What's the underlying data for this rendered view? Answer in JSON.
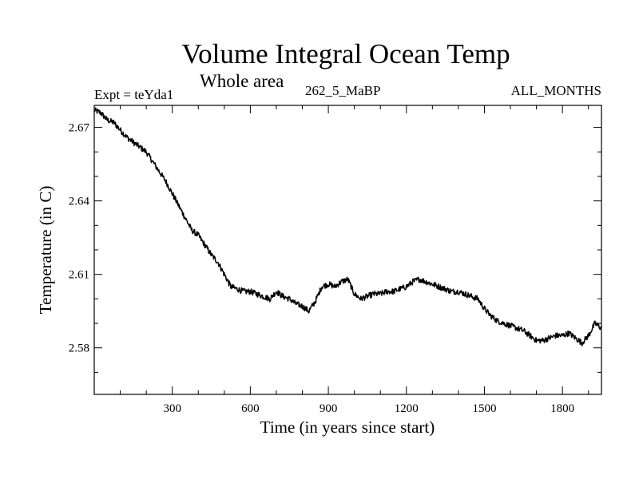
{
  "header": {
    "title": "Volume Integral Ocean Temp",
    "subtitle": "Whole area",
    "experiment": "Expt = teYda1",
    "period": "262_5_MaBP",
    "months": "ALL_MONTHS"
  },
  "chart_data": {
    "type": "line",
    "title": "Volume Integral Ocean Temp",
    "subtitle": "Whole area",
    "xlabel": "Time (in years since start)",
    "ylabel": "Temperature (in C)",
    "xlim": [
      0,
      1950
    ],
    "ylim": [
      2.561,
      2.679
    ],
    "x_ticks": [
      300,
      600,
      900,
      1200,
      1500,
      1800
    ],
    "y_ticks": [
      2.58,
      2.61,
      2.64,
      2.67
    ],
    "x_tick_labels": [
      "300",
      "600",
      "900",
      "1200",
      "1500",
      "1800"
    ],
    "y_tick_labels": [
      "2.58",
      "2.61",
      "2.64",
      "2.67"
    ],
    "grid": false,
    "series": [
      {
        "name": "Volume Integral Ocean Temp",
        "color": "#000000",
        "x": [
          0,
          25,
          50,
          75,
          100,
          125,
          150,
          175,
          200,
          225,
          250,
          275,
          300,
          325,
          350,
          375,
          400,
          425,
          450,
          475,
          500,
          525,
          550,
          575,
          600,
          625,
          650,
          675,
          700,
          725,
          750,
          775,
          800,
          825,
          850,
          875,
          900,
          925,
          950,
          975,
          1000,
          1025,
          1050,
          1075,
          1100,
          1125,
          1150,
          1175,
          1200,
          1225,
          1250,
          1275,
          1300,
          1325,
          1350,
          1375,
          1400,
          1425,
          1450,
          1475,
          1500,
          1525,
          1550,
          1575,
          1600,
          1625,
          1650,
          1675,
          1700,
          1725,
          1750,
          1775,
          1800,
          1825,
          1850,
          1875,
          1900,
          1925,
          1950
        ],
        "values": [
          2.677,
          2.676,
          2.673,
          2.672,
          2.669,
          2.666,
          2.664,
          2.662,
          2.66,
          2.656,
          2.652,
          2.648,
          2.643,
          2.638,
          2.633,
          2.628,
          2.626,
          2.622,
          2.618,
          2.615,
          2.61,
          2.605,
          2.604,
          2.603,
          2.603,
          2.602,
          2.601,
          2.6,
          2.603,
          2.601,
          2.6,
          2.598,
          2.597,
          2.595,
          2.599,
          2.605,
          2.606,
          2.605,
          2.607,
          2.608,
          2.602,
          2.6,
          2.601,
          2.602,
          2.602,
          2.603,
          2.603,
          2.604,
          2.605,
          2.607,
          2.608,
          2.607,
          2.606,
          2.605,
          2.604,
          2.603,
          2.603,
          2.602,
          2.601,
          2.6,
          2.596,
          2.593,
          2.591,
          2.59,
          2.589,
          2.588,
          2.587,
          2.585,
          2.583,
          2.583,
          2.584,
          2.585,
          2.585,
          2.586,
          2.584,
          2.582,
          2.585,
          2.59,
          2.588
        ]
      }
    ]
  }
}
